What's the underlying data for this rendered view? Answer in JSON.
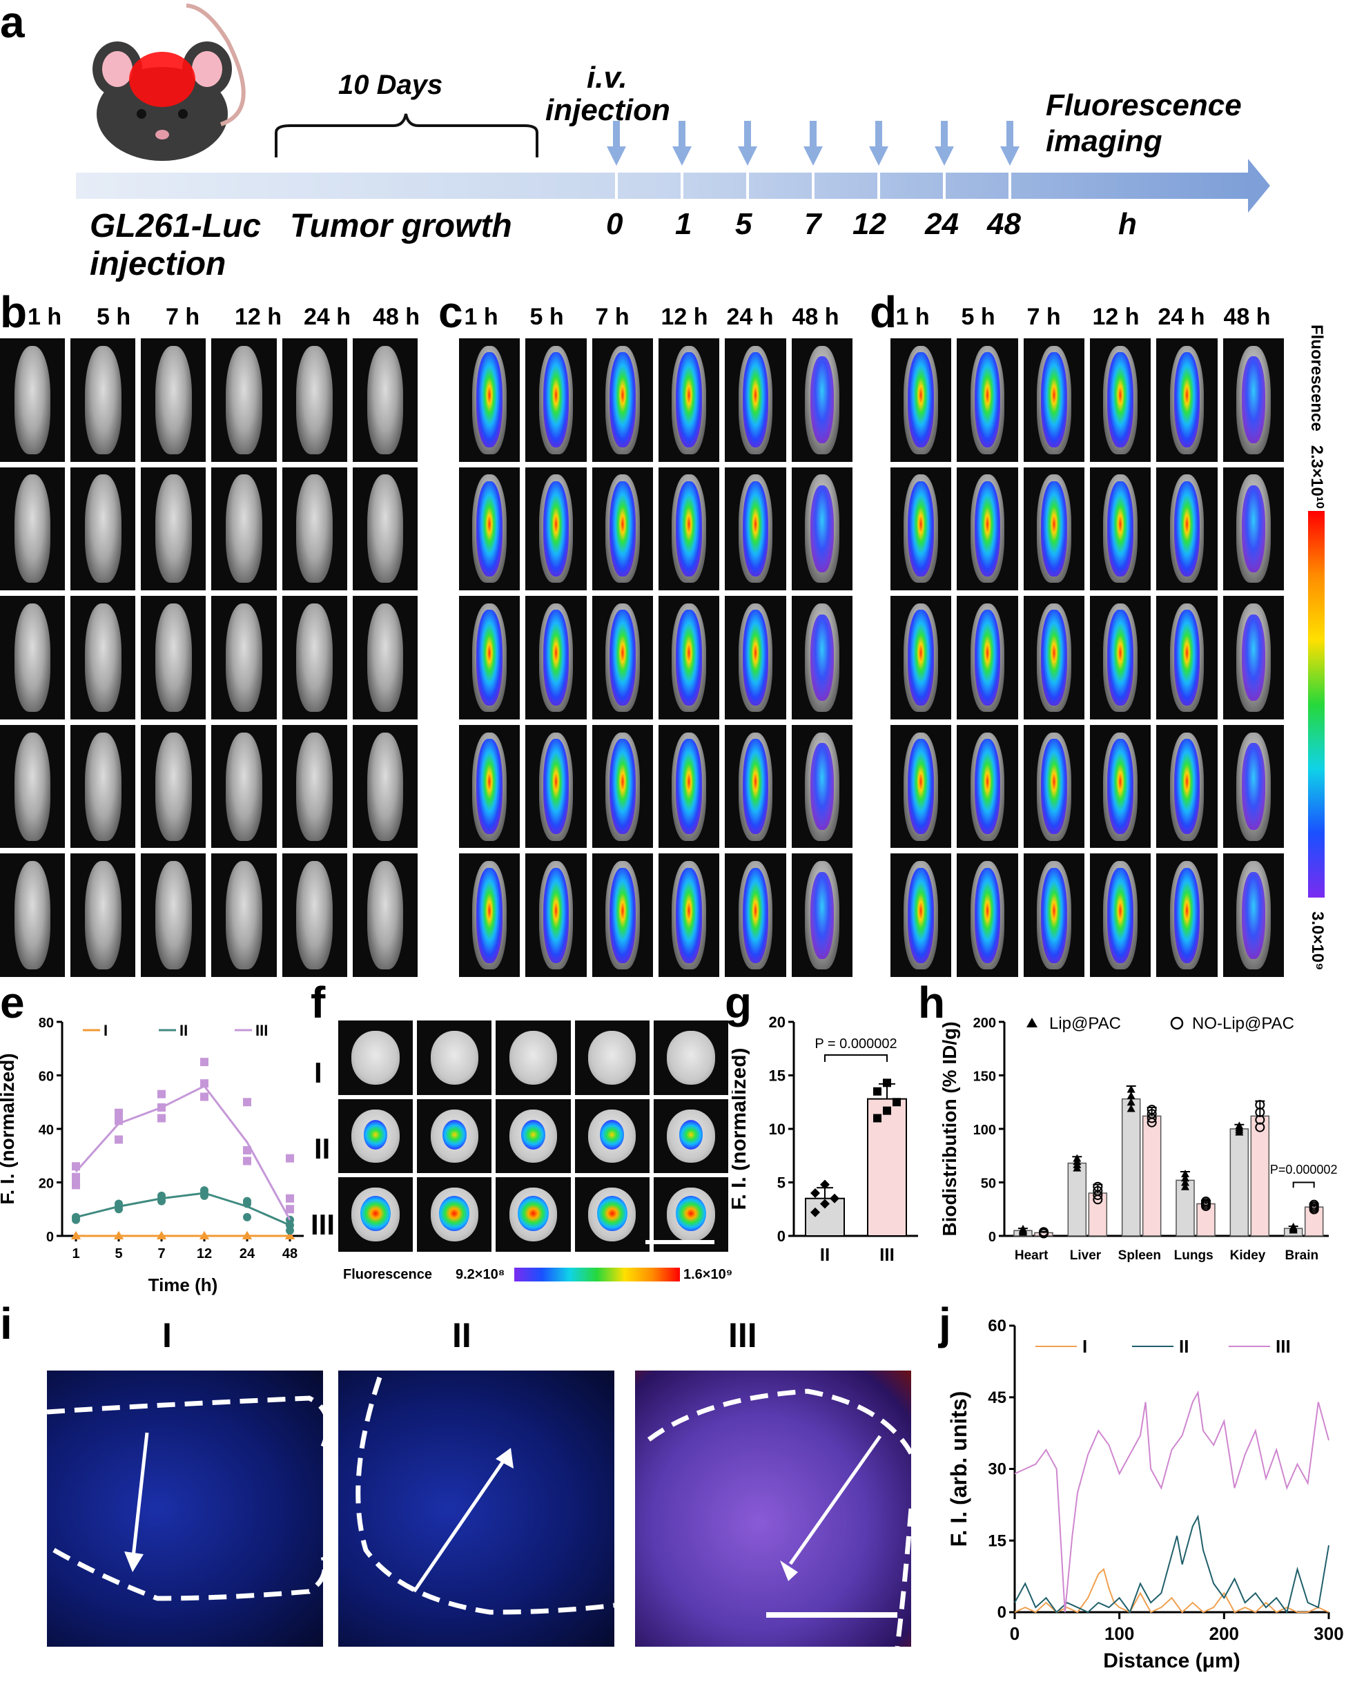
{
  "panels": {
    "a": "a",
    "b": "b",
    "c": "c",
    "d": "d",
    "e": "e",
    "f": "f",
    "g": "g",
    "h": "h",
    "i": "i",
    "j": "j"
  },
  "timeline": {
    "days": "10 Days",
    "iv_line1": "i.v.",
    "iv_line2": "injection",
    "fluor_line1": "Fluorescence",
    "fluor_line2": "imaging",
    "gl_line1": "GL261-Luc",
    "gl_line2": "injection",
    "tumor": "Tumor growth",
    "times": [
      "0",
      "1",
      "5",
      "7",
      "12",
      "24",
      "48"
    ],
    "unit": "h",
    "accent": "#7e9fd8"
  },
  "imaging": {
    "time_headers": [
      "1 h",
      "5 h",
      "7 h",
      "12 h",
      "24 h",
      "48 h"
    ],
    "scale_title": "Fluorescence",
    "scale_max": "2.3×10¹⁰",
    "scale_min": "3.0×10⁹"
  },
  "brains": {
    "row_labels": [
      "I",
      "II",
      "III"
    ],
    "scale_title": "Fluorescence",
    "scale_min": "9.2×10⁸",
    "scale_max": "1.6×10⁹"
  },
  "micro": {
    "labels": [
      "I",
      "II",
      "III"
    ]
  },
  "chart_data": [
    {
      "panel": "e",
      "type": "line",
      "xlabel": "Time (h)",
      "ylabel": "F. I. (normalized)",
      "categories": [
        "1",
        "5",
        "7",
        "12",
        "24",
        "48"
      ],
      "ylim": [
        0,
        80
      ],
      "yticks": [
        "0",
        "20",
        "40",
        "60",
        "80"
      ],
      "legend": "top",
      "series": [
        {
          "name": "I",
          "color": "#f39a33",
          "values": [
            0,
            0,
            0,
            0,
            0,
            0
          ],
          "points": [
            [
              0,
              0,
              0
            ],
            [
              0,
              0,
              0
            ],
            [
              0,
              0,
              0
            ],
            [
              0,
              0,
              0
            ],
            [
              0,
              0,
              0
            ],
            [
              0,
              0,
              0
            ]
          ]
        },
        {
          "name": "II",
          "color": "#3f8a80",
          "values": [
            7,
            11,
            14,
            16,
            11,
            4
          ],
          "points": [
            [
              6,
              7,
              7
            ],
            [
              10,
              11,
              12
            ],
            [
              13,
              14,
              15
            ],
            [
              15,
              16,
              17
            ],
            [
              7,
              12,
              13
            ],
            [
              2,
              4,
              6
            ]
          ]
        },
        {
          "name": "III",
          "color": "#c597d8",
          "values": [
            24,
            42,
            48,
            56,
            35,
            6
          ],
          "points": [
            [
              19,
              22,
              26
            ],
            [
              36,
              43,
              46
            ],
            [
              44,
              48,
              53
            ],
            [
              52,
              57,
              65
            ],
            [
              28,
              32,
              50
            ],
            [
              10,
              14,
              29
            ]
          ]
        }
      ]
    },
    {
      "panel": "g",
      "type": "bar",
      "ylabel": "F. I. (normalized)",
      "categories": [
        "II",
        "III"
      ],
      "values": [
        3.5,
        12.8
      ],
      "errors": [
        1.0,
        1.4
      ],
      "points": [
        [
          2.2,
          3.0,
          3.5,
          4.0,
          4.8
        ],
        [
          11.0,
          11.7,
          12.5,
          13.5,
          14.3
        ]
      ],
      "colors": [
        "#d9d9d9",
        "#f9d9d9"
      ],
      "ylim": [
        0,
        20
      ],
      "yticks": [
        "0",
        "5",
        "10",
        "15",
        "20"
      ],
      "annotation": "P = 0.000002"
    },
    {
      "panel": "h",
      "type": "bar",
      "ylabel": "Biodistribution (% ID/g)",
      "categories": [
        "Heart",
        "Liver",
        "Spleen",
        "Lungs",
        "Kidey",
        "Brain"
      ],
      "ylim": [
        0,
        200
      ],
      "yticks": [
        "0",
        "50",
        "100",
        "150",
        "200"
      ],
      "legend": "top",
      "series": [
        {
          "name": "Lip@PAC",
          "color": "#d9d9d9",
          "values": [
            5,
            68,
            128,
            52,
            100,
            7
          ],
          "errors": [
            2,
            6,
            12,
            8,
            4,
            2
          ]
        },
        {
          "name": "NO-Lip@PAC",
          "color": "#f9d9d9",
          "values": [
            3,
            40,
            112,
            30,
            112,
            27
          ],
          "errors": [
            1,
            8,
            8,
            3,
            14,
            3
          ]
        }
      ],
      "annotation": "P=0.000002"
    },
    {
      "panel": "j",
      "type": "line",
      "xlabel": "Distance (μm)",
      "ylabel": "F. I. (arb. units)",
      "xlim": [
        0,
        300
      ],
      "ylim": [
        0,
        60
      ],
      "xticks": [
        "0",
        "100",
        "200",
        "300"
      ],
      "yticks": [
        "0",
        "15",
        "30",
        "45",
        "60"
      ],
      "legend": "top",
      "series": [
        {
          "name": "I",
          "color": "#f0a050",
          "x": [
            0,
            10,
            20,
            30,
            40,
            50,
            60,
            70,
            80,
            85,
            90,
            95,
            100,
            110,
            120,
            130,
            140,
            150,
            160,
            170,
            180,
            190,
            200,
            210,
            220,
            230,
            240,
            250,
            260,
            270,
            280,
            290,
            300
          ],
          "y": [
            0,
            1,
            0,
            2,
            0,
            1,
            0,
            3,
            8,
            9,
            5,
            2,
            1,
            0,
            4,
            0,
            1,
            3,
            0,
            2,
            0,
            1,
            4,
            0,
            1,
            0,
            2,
            0,
            1,
            0,
            0,
            1,
            0
          ]
        },
        {
          "name": "II",
          "color": "#1f5f6a",
          "x": [
            0,
            10,
            20,
            30,
            40,
            50,
            60,
            70,
            80,
            90,
            100,
            110,
            120,
            130,
            140,
            150,
            155,
            160,
            170,
            175,
            180,
            190,
            200,
            210,
            220,
            230,
            240,
            250,
            260,
            270,
            280,
            290,
            300
          ],
          "y": [
            2,
            6,
            1,
            3,
            0,
            2,
            1,
            0,
            2,
            1,
            3,
            0,
            6,
            2,
            4,
            12,
            16,
            10,
            18,
            20,
            13,
            6,
            3,
            7,
            2,
            4,
            1,
            3,
            0,
            9,
            2,
            1,
            14
          ]
        },
        {
          "name": "III",
          "color": "#cf86cf",
          "x": [
            0,
            10,
            20,
            30,
            40,
            48,
            55,
            60,
            70,
            80,
            90,
            100,
            110,
            120,
            125,
            130,
            140,
            150,
            160,
            170,
            175,
            180,
            190,
            200,
            210,
            220,
            230,
            240,
            250,
            260,
            270,
            280,
            290,
            300
          ],
          "y": [
            29,
            30,
            31,
            34,
            30,
            0,
            16,
            25,
            33,
            38,
            35,
            29,
            33,
            37,
            44,
            30,
            26,
            34,
            37,
            44,
            46,
            38,
            35,
            40,
            26,
            33,
            38,
            28,
            34,
            26,
            31,
            27,
            44,
            36
          ]
        }
      ]
    }
  ]
}
